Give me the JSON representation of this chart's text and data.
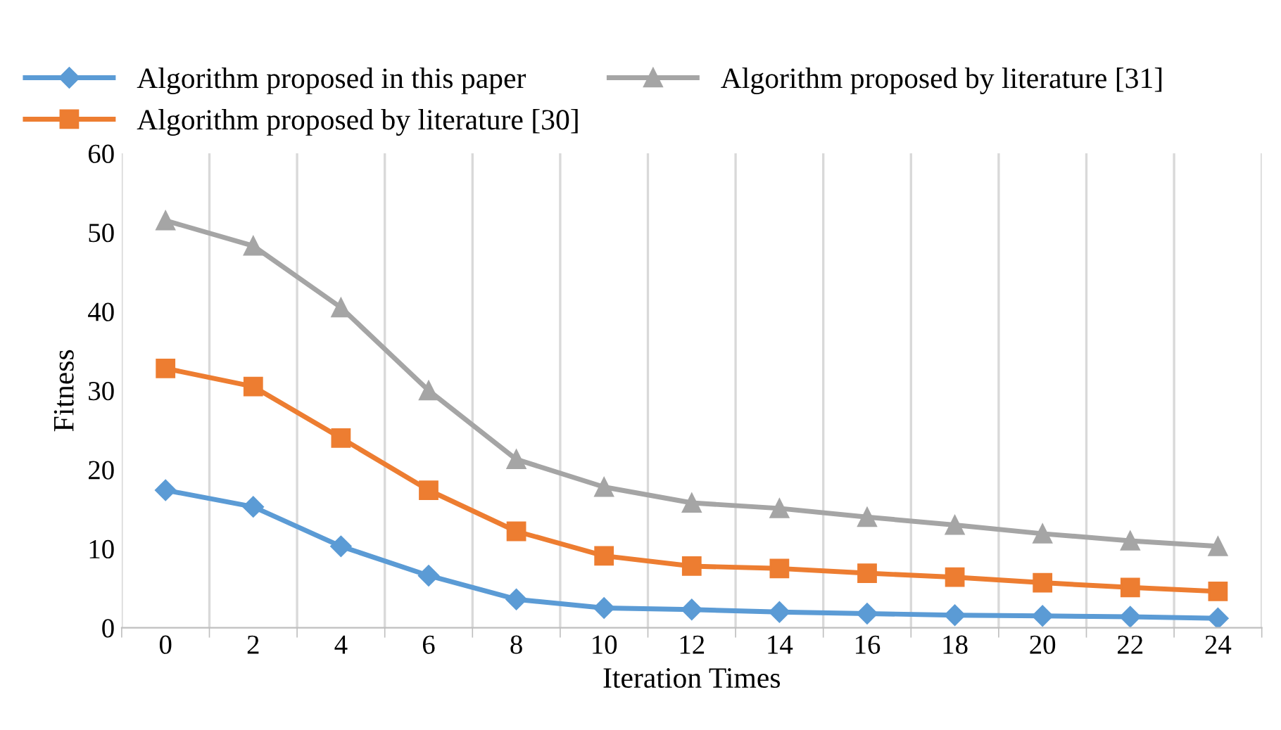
{
  "chart_data": {
    "type": "line",
    "xlabel": "Iteration Times",
    "ylabel": "Fitness",
    "categories": [
      "0",
      "2",
      "4",
      "6",
      "8",
      "10",
      "12",
      "14",
      "16",
      "18",
      "20",
      "22",
      "24"
    ],
    "series": [
      {
        "name": "Algorithm proposed in this paper",
        "color": "#5b9bd5",
        "marker": "diamond",
        "values": [
          17.4,
          15.3,
          10.3,
          6.6,
          3.6,
          2.5,
          2.3,
          2.0,
          1.8,
          1.6,
          1.5,
          1.4,
          1.2
        ]
      },
      {
        "name": "Algorithm proposed by literature [30]",
        "color": "#ed7d31",
        "marker": "square",
        "values": [
          32.8,
          30.5,
          24.0,
          17.4,
          12.2,
          9.1,
          7.8,
          7.5,
          6.9,
          6.4,
          5.7,
          5.1,
          4.6
        ]
      },
      {
        "name": "Algorithm proposed by literature [31]",
        "color": "#a5a5a5",
        "marker": "triangle",
        "values": [
          51.5,
          48.3,
          40.5,
          30.0,
          21.3,
          17.8,
          15.8,
          15.1,
          14.0,
          13.0,
          11.9,
          11.0,
          10.3
        ]
      }
    ],
    "ylim": [
      0,
      60
    ],
    "yticks": [
      0,
      10,
      20,
      30,
      40,
      50,
      60
    ],
    "grid": "x",
    "legend": "top",
    "line_style": "solid"
  }
}
